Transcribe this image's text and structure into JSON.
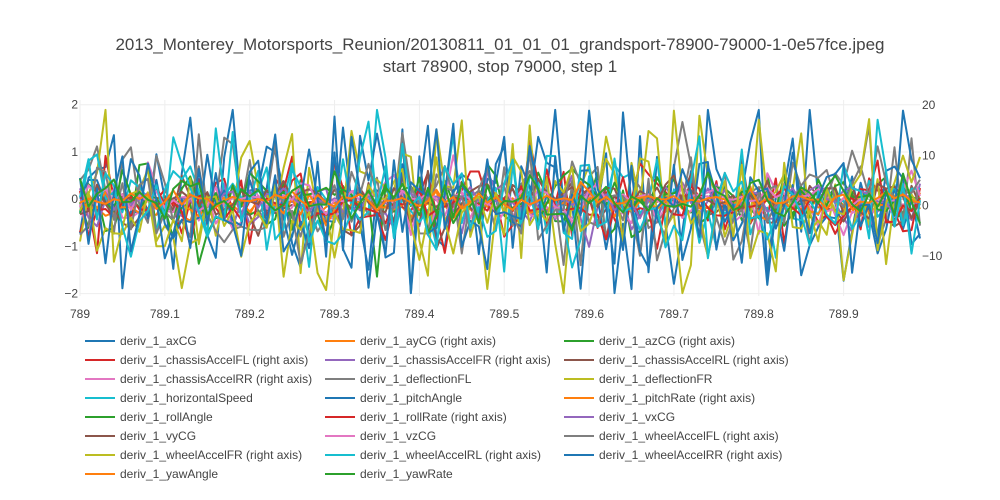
{
  "chart_data": {
    "type": "line",
    "title": "2013_Monterey_Motorsports_Reunion/20130811_01_01_01_grandsport-78900-79000-1-0e57fce.jpeg",
    "subtitle": "start 78900, stop 79000, step 1",
    "xlabel": "",
    "ylabel": "",
    "xlim": [
      789.0,
      789.99
    ],
    "ylim_left": [
      -2.05,
      2.1
    ],
    "ylim_right": [
      -18.0,
      21.0
    ],
    "x_ticks": [
      789.0,
      789.1,
      789.2,
      789.3,
      789.4,
      789.5,
      789.6,
      789.7,
      789.8,
      789.9
    ],
    "x_tick_labels": [
      "789",
      "789.1",
      "789.2",
      "789.3",
      "789.4",
      "789.5",
      "789.6",
      "789.7",
      "789.8",
      "789.9"
    ],
    "y_ticks_left": [
      -2,
      -1,
      0,
      1,
      2
    ],
    "y_tick_labels_left": [
      "−2",
      "−1",
      "0",
      "1",
      "2"
    ],
    "y_ticks_right": [
      -10,
      0,
      10,
      20
    ],
    "y_tick_labels_right": [
      "−10",
      "0",
      "10",
      "20"
    ],
    "grid": true,
    "legend_position": "bottom",
    "x_start": 789.0,
    "x_step": 0.01,
    "series": [
      {
        "name": "deriv_1_axCG",
        "axis": "left",
        "color": "#1f77b4",
        "amp": 0.95,
        "seed": 1
      },
      {
        "name": "deriv_1_ayCG (right axis)",
        "axis": "right",
        "color": "#ff7f0e",
        "amp": 1.5,
        "seed": 2
      },
      {
        "name": "deriv_1_azCG (right axis)",
        "axis": "right",
        "color": "#2ca02c",
        "amp": 3.5,
        "seed": 3
      },
      {
        "name": "deriv_1_chassisAccelFL (right axis)",
        "axis": "right",
        "color": "#d62728",
        "amp": 4.0,
        "seed": 4
      },
      {
        "name": "deriv_1_chassisAccelFR (right axis)",
        "axis": "right",
        "color": "#9467bd",
        "amp": 3.0,
        "seed": 5
      },
      {
        "name": "deriv_1_chassisAccelRL (right axis)",
        "axis": "right",
        "color": "#8c564b",
        "amp": 3.0,
        "seed": 6
      },
      {
        "name": "deriv_1_chassisAccelRR (right axis)",
        "axis": "right",
        "color": "#e377c2",
        "amp": 2.5,
        "seed": 7
      },
      {
        "name": "deriv_1_deflectionFL",
        "axis": "left",
        "color": "#7f7f7f",
        "amp": 0.7,
        "seed": 8
      },
      {
        "name": "deriv_1_deflectionFR",
        "axis": "left",
        "color": "#bcbd22",
        "amp": 0.95,
        "seed": 9
      },
      {
        "name": "deriv_1_horizontalSpeed",
        "axis": "left",
        "color": "#17becf",
        "amp": 0.6,
        "seed": 10
      },
      {
        "name": "deriv_1_pitchAngle",
        "axis": "left",
        "color": "#1f77b4",
        "amp": 0.7,
        "seed": 11
      },
      {
        "name": "deriv_1_pitchRate (right axis)",
        "axis": "right",
        "color": "#ff7f0e",
        "amp": 1.5,
        "seed": 12
      },
      {
        "name": "deriv_1_rollAngle",
        "axis": "left",
        "color": "#2ca02c",
        "amp": 0.3,
        "seed": 13
      },
      {
        "name": "deriv_1_rollRate (right axis)",
        "axis": "right",
        "color": "#d62728",
        "amp": 2.0,
        "seed": 14
      },
      {
        "name": "deriv_1_vxCG",
        "axis": "left",
        "color": "#9467bd",
        "amp": 0.15,
        "seed": 15
      },
      {
        "name": "deriv_1_vyCG",
        "axis": "left",
        "color": "#8c564b",
        "amp": 0.2,
        "seed": 16
      },
      {
        "name": "deriv_1_vzCG",
        "axis": "left",
        "color": "#e377c2",
        "amp": 0.15,
        "seed": 17
      },
      {
        "name": "deriv_1_wheelAccelFL (right axis)",
        "axis": "right",
        "color": "#7f7f7f",
        "amp": 5.0,
        "seed": 18
      },
      {
        "name": "deriv_1_wheelAccelFR (right axis)",
        "axis": "right",
        "color": "#bcbd22",
        "amp": 6.0,
        "seed": 19
      },
      {
        "name": "deriv_1_wheelAccelRL (right axis)",
        "axis": "right",
        "color": "#17becf",
        "amp": 5.5,
        "seed": 20
      },
      {
        "name": "deriv_1_wheelAccelRR (right axis)",
        "axis": "right",
        "color": "#1f77b4",
        "amp": 7.0,
        "seed": 21
      },
      {
        "name": "deriv_1_yawAngle",
        "axis": "left",
        "color": "#ff7f0e",
        "amp": 0.1,
        "seed": 22
      },
      {
        "name": "deriv_1_yawRate",
        "axis": "left",
        "color": "#2ca02c",
        "amp": 0.25,
        "seed": 23
      }
    ]
  }
}
